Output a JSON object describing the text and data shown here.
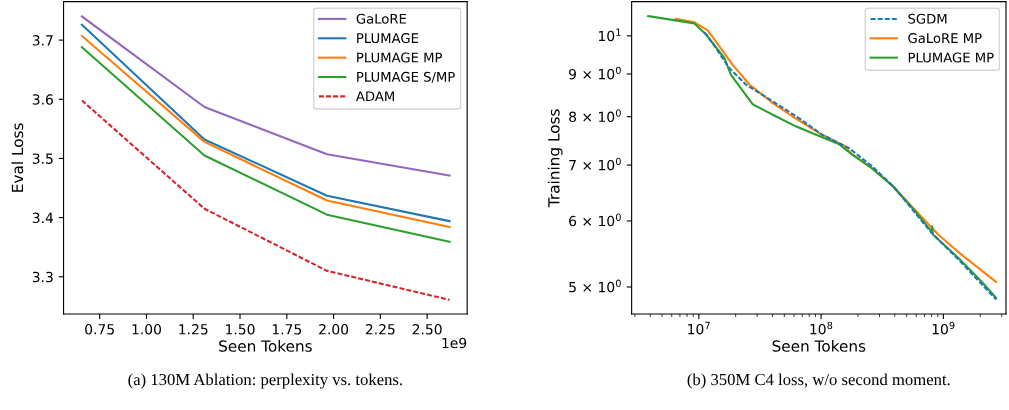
{
  "chart_data": [
    {
      "type": "line",
      "xlabel": "Seen Tokens",
      "ylabel": "Eval Loss",
      "legend": "top right",
      "grid": false,
      "x": [
        0.655,
        1.31,
        1.965,
        2.62
      ],
      "xlim": [
        0.557,
        2.714
      ],
      "ylim": [
        3.237,
        3.765
      ],
      "xticks": [
        0.75,
        {
          "value": 1,
          "label": "1.00"
        },
        1.25,
        {
          "value": 1.5,
          "label": "1.50"
        },
        1.75,
        {
          "value": 2,
          "label": "2.00"
        },
        2.25,
        {
          "value": 2.5,
          "label": "2.50"
        }
      ],
      "yticks": [
        3.3,
        3.4,
        3.5,
        3.6,
        3.7
      ],
      "series": [
        {
          "name": "GaLoRE",
          "color": "#9467bd",
          "values": [
            3.74,
            3.587,
            3.507,
            3.471
          ]
        },
        {
          "name": "PLUMAGE",
          "color": "#1f77b4",
          "values": [
            3.726,
            3.532,
            3.437,
            3.394
          ]
        },
        {
          "name": "PLUMAGE MP",
          "color": "#ff7f0e",
          "values": [
            3.707,
            3.528,
            3.429,
            3.384
          ]
        },
        {
          "name": "PLUMAGE S/MP",
          "color": "#2ca02c",
          "values": [
            3.688,
            3.505,
            3.405,
            3.359
          ]
        },
        {
          "name": "ADAM",
          "color": "#d62728",
          "line_style": "dashed",
          "values": [
            3.598,
            3.415,
            3.31,
            3.261
          ]
        }
      ],
      "annotations": [
        "1e9",
        "(a) 130M Ablation: perplexity vs. tokens."
      ]
    },
    {
      "type": "line",
      "xlabel": "Seen Tokens",
      "ylabel": "Training Loss",
      "legend": "top right",
      "grid": false,
      "log": "xy",
      "xlim": [
        2820000,
        3250000000
      ],
      "ylim": [
        4.64,
        10.99
      ],
      "xticks": [
        {
          "value": 10000000,
          "label": "10$^{7}$"
        },
        {
          "value": 100000000,
          "label": "10$^{8}$"
        },
        {
          "value": 1000000000,
          "label": "10$^{9}$"
        }
      ],
      "yticks": [
        {
          "value": 5,
          "label": "5 × 10$^{0}$"
        },
        {
          "value": 6,
          "label": "6 × 10$^{0}$"
        },
        {
          "value": 7,
          "label": "7 × 10$^{0}$"
        },
        {
          "value": 8,
          "label": "8 × 10$^{0}$"
        },
        {
          "value": 9,
          "label": "9 × 10$^{0}$"
        },
        {
          "value": 10,
          "label": "10$^{1}$"
        }
      ],
      "series": [
        {
          "name": "SGDM",
          "color": "#1f77b4",
          "line_style": "dashed",
          "x": [
            11100000,
            13800000,
            17700000,
            24300000,
            40000000,
            65800000,
            102000000,
            168000000,
            260000000,
            402000000,
            584000000,
            798000000,
            1320000000,
            2700000000
          ],
          "values": [
            10.1,
            9.67,
            9.15,
            8.74,
            8.35,
            7.97,
            7.61,
            7.34,
            6.98,
            6.57,
            6.14,
            5.81,
            5.4,
            4.83
          ]
        },
        {
          "name": "GaLoRE MP",
          "color": "#ff7f0e",
          "x": [
            6460000,
            9200000,
            11800000,
            13800000,
            18900000,
            25800000,
            40000000,
            58100000,
            102000000,
            153000000,
            179000000,
            260000000,
            390000000,
            584000000,
            906000000,
            1400000000,
            2700000000
          ],
          "values": [
            10.48,
            10.38,
            10.15,
            9.84,
            9.23,
            8.75,
            8.31,
            8.01,
            7.61,
            7.39,
            7.21,
            6.94,
            6.6,
            6.19,
            5.78,
            5.47,
            5.07
          ]
        },
        {
          "name": "PLUMAGE MP",
          "color": "#2ca02c",
          "x": [
            3850000,
            9200000,
            11500000,
            16200000,
            18300000,
            27500000,
            42500000,
            62000000,
            102000000,
            139000000,
            179000000,
            260000000,
            378000000,
            584000000,
            798000000,
            810000000,
            820000000,
            1320000000,
            2040000000,
            2700000000
          ],
          "values": [
            10.56,
            10.35,
            10.03,
            9.4,
            8.98,
            8.28,
            8.01,
            7.79,
            7.56,
            7.42,
            7.21,
            6.94,
            6.62,
            6.17,
            5.83,
            5.91,
            5.78,
            5.42,
            5.08,
            4.85
          ]
        }
      ],
      "annotations": [
        "(b) 350M C4 loss, w/o second moment."
      ]
    }
  ]
}
